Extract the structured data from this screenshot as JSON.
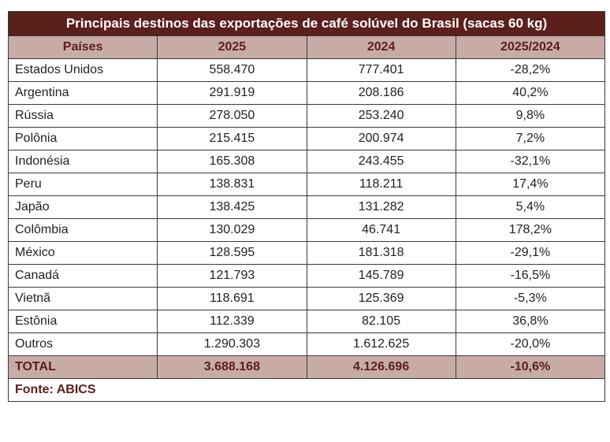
{
  "title": "Principais destinos das exportações de café solúvel do Brasil (sacas 60 kg)",
  "table": {
    "header": [
      "Países",
      "2025",
      "2024",
      "2025/2024"
    ],
    "rows": [
      [
        "Estados Unidos",
        "558.470",
        "777.401",
        "-28,2%"
      ],
      [
        "Argentina",
        "291.919",
        "208.186",
        "40,2%"
      ],
      [
        "Rússia",
        "278.050",
        "253.240",
        "9,8%"
      ],
      [
        "Polônia",
        "215.415",
        "200.974",
        "7,2%"
      ],
      [
        "Indonésia",
        "165.308",
        "243.455",
        "-32,1%"
      ],
      [
        "Peru",
        "138.831",
        "118.211",
        "17,4%"
      ],
      [
        "Japão",
        "138.425",
        "131.282",
        "5,4%"
      ],
      [
        "Colômbia",
        "130.029",
        "46.741",
        "178,2%"
      ],
      [
        "México",
        "128.595",
        "181.318",
        "-29,1%"
      ],
      [
        "Canadá",
        "121.793",
        "145.789",
        "-16,5%"
      ],
      [
        "Vietnã",
        "118.691",
        "125.369",
        "-5,3%"
      ],
      [
        "Estônia",
        "112.339",
        "82.105",
        "36,8%"
      ],
      [
        "Outros",
        "1.290.303",
        "1.612.625",
        "-20,0%"
      ]
    ],
    "total": [
      "TOTAL",
      "3.688.168",
      "4.126.696",
      "-10,6%"
    ]
  },
  "source": "Fonte: ABICS"
}
